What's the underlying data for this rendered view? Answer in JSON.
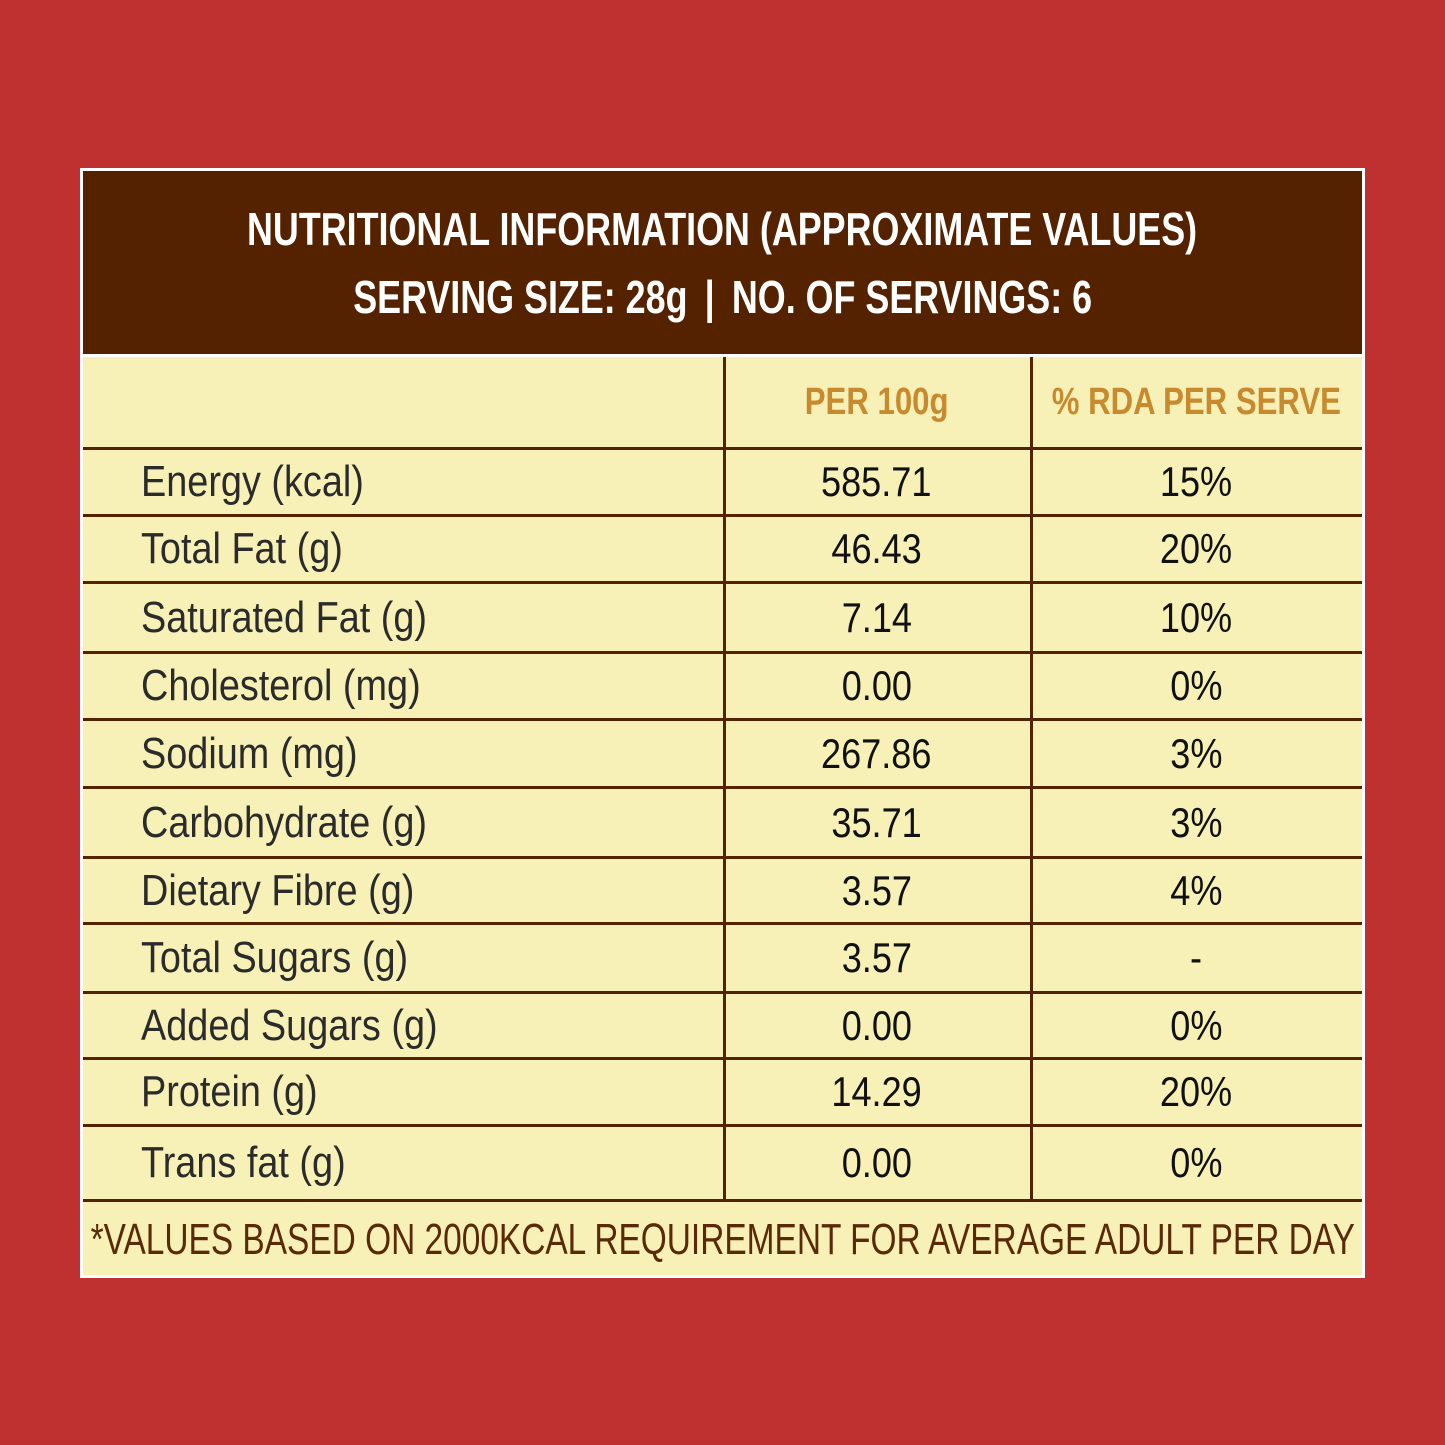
{
  "header": {
    "line1": "NUTRITIONAL INFORMATION (APPROXIMATE VALUES)",
    "serving_size": "SERVING SIZE: 28g",
    "separator": "|",
    "servings": "NO. OF SERVINGS: 6"
  },
  "columns": {
    "nutrient": "",
    "per100": "PER 100g",
    "rda": "% RDA PER SERVE"
  },
  "rows": [
    {
      "nutrient": "Energy (kcal)",
      "per100": "585.71",
      "rda": "15%"
    },
    {
      "nutrient": "Total Fat (g)",
      "per100": "46.43",
      "rda": "20%"
    },
    {
      "nutrient": "Saturated Fat (g)",
      "per100": "7.14",
      "rda": "10%"
    },
    {
      "nutrient": "Cholesterol (mg)",
      "per100": "0.00",
      "rda": "0%"
    },
    {
      "nutrient": "Sodium (mg)",
      "per100": "267.86",
      "rda": "3%"
    },
    {
      "nutrient": "Carbohydrate (g)",
      "per100": "35.71",
      "rda": "3%"
    },
    {
      "nutrient": "Dietary Fibre (g)",
      "per100": "3.57",
      "rda": "4%"
    },
    {
      "nutrient": "Total Sugars (g)",
      "per100": "3.57",
      "rda": "-"
    },
    {
      "nutrient": "Added Sugars (g)",
      "per100": "0.00",
      "rda": "0%"
    },
    {
      "nutrient": "Protein (g)",
      "per100": "14.29",
      "rda": "20%"
    },
    {
      "nutrient": "Trans fat (g)",
      "per100": "0.00",
      "rda": "0%"
    }
  ],
  "footnote": "*VALUES BASED ON 2000KCAL REQUIREMENT FOR AVERAGE ADULT PER DAY",
  "colors": {
    "background": "#bf3030",
    "header_bg": "#552200",
    "table_bg": "#f8f1b7",
    "column_header_text": "#c78a2e",
    "footnote_text": "#5a2a08"
  }
}
